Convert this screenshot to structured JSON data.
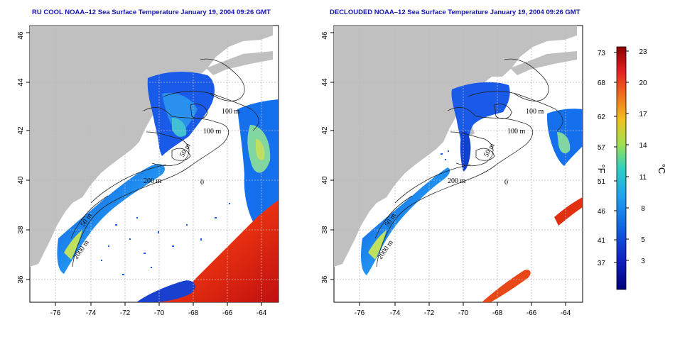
{
  "maps": [
    {
      "title": "RU COOL NOAA–12 Sea Surface Temperature January 19, 2004 09:26 GMT",
      "x_ticks": [
        "-76",
        "-74",
        "-72",
        "-70",
        "-68",
        "-66",
        "-64"
      ],
      "y_ticks": [
        "36",
        "38",
        "40",
        "42",
        "44",
        "46"
      ],
      "contour_labels": [
        "100 m",
        "100 m",
        "50 m",
        "200 m",
        "50 m",
        "2000 m",
        "0"
      ]
    },
    {
      "title": "DECLOUDED NOAA–12 Sea Surface Temperature January 19, 2004 09:26 GMT",
      "x_ticks": [
        "-76",
        "-74",
        "-72",
        "-70",
        "-68",
        "-66",
        "-64"
      ],
      "y_ticks": [
        "36",
        "38",
        "40",
        "42",
        "44",
        "46"
      ],
      "contour_labels": [
        "100 m",
        "100 m",
        "50 m",
        "200 m",
        "50 m",
        "2000 m",
        "0"
      ]
    }
  ],
  "legend": {
    "fahrenheit_ticks": [
      "73",
      "68",
      "62",
      "57",
      "51",
      "46",
      "41",
      "37"
    ],
    "celsius_ticks": [
      "23",
      "20",
      "17",
      "14",
      "11",
      "8",
      "5",
      "3"
    ],
    "fahrenheit_label": "°F",
    "celsius_label": "°C",
    "colors": [
      "#8b0000",
      "#e22020",
      "#f07020",
      "#f0c020",
      "#a0e050",
      "#30d0c0",
      "#20a0f0",
      "#1060e0",
      "#1020c0",
      "#00007a"
    ]
  },
  "colors": {
    "land": "#c0c0c0",
    "gridline": "#b8b8b8",
    "title": "#1515b0"
  }
}
